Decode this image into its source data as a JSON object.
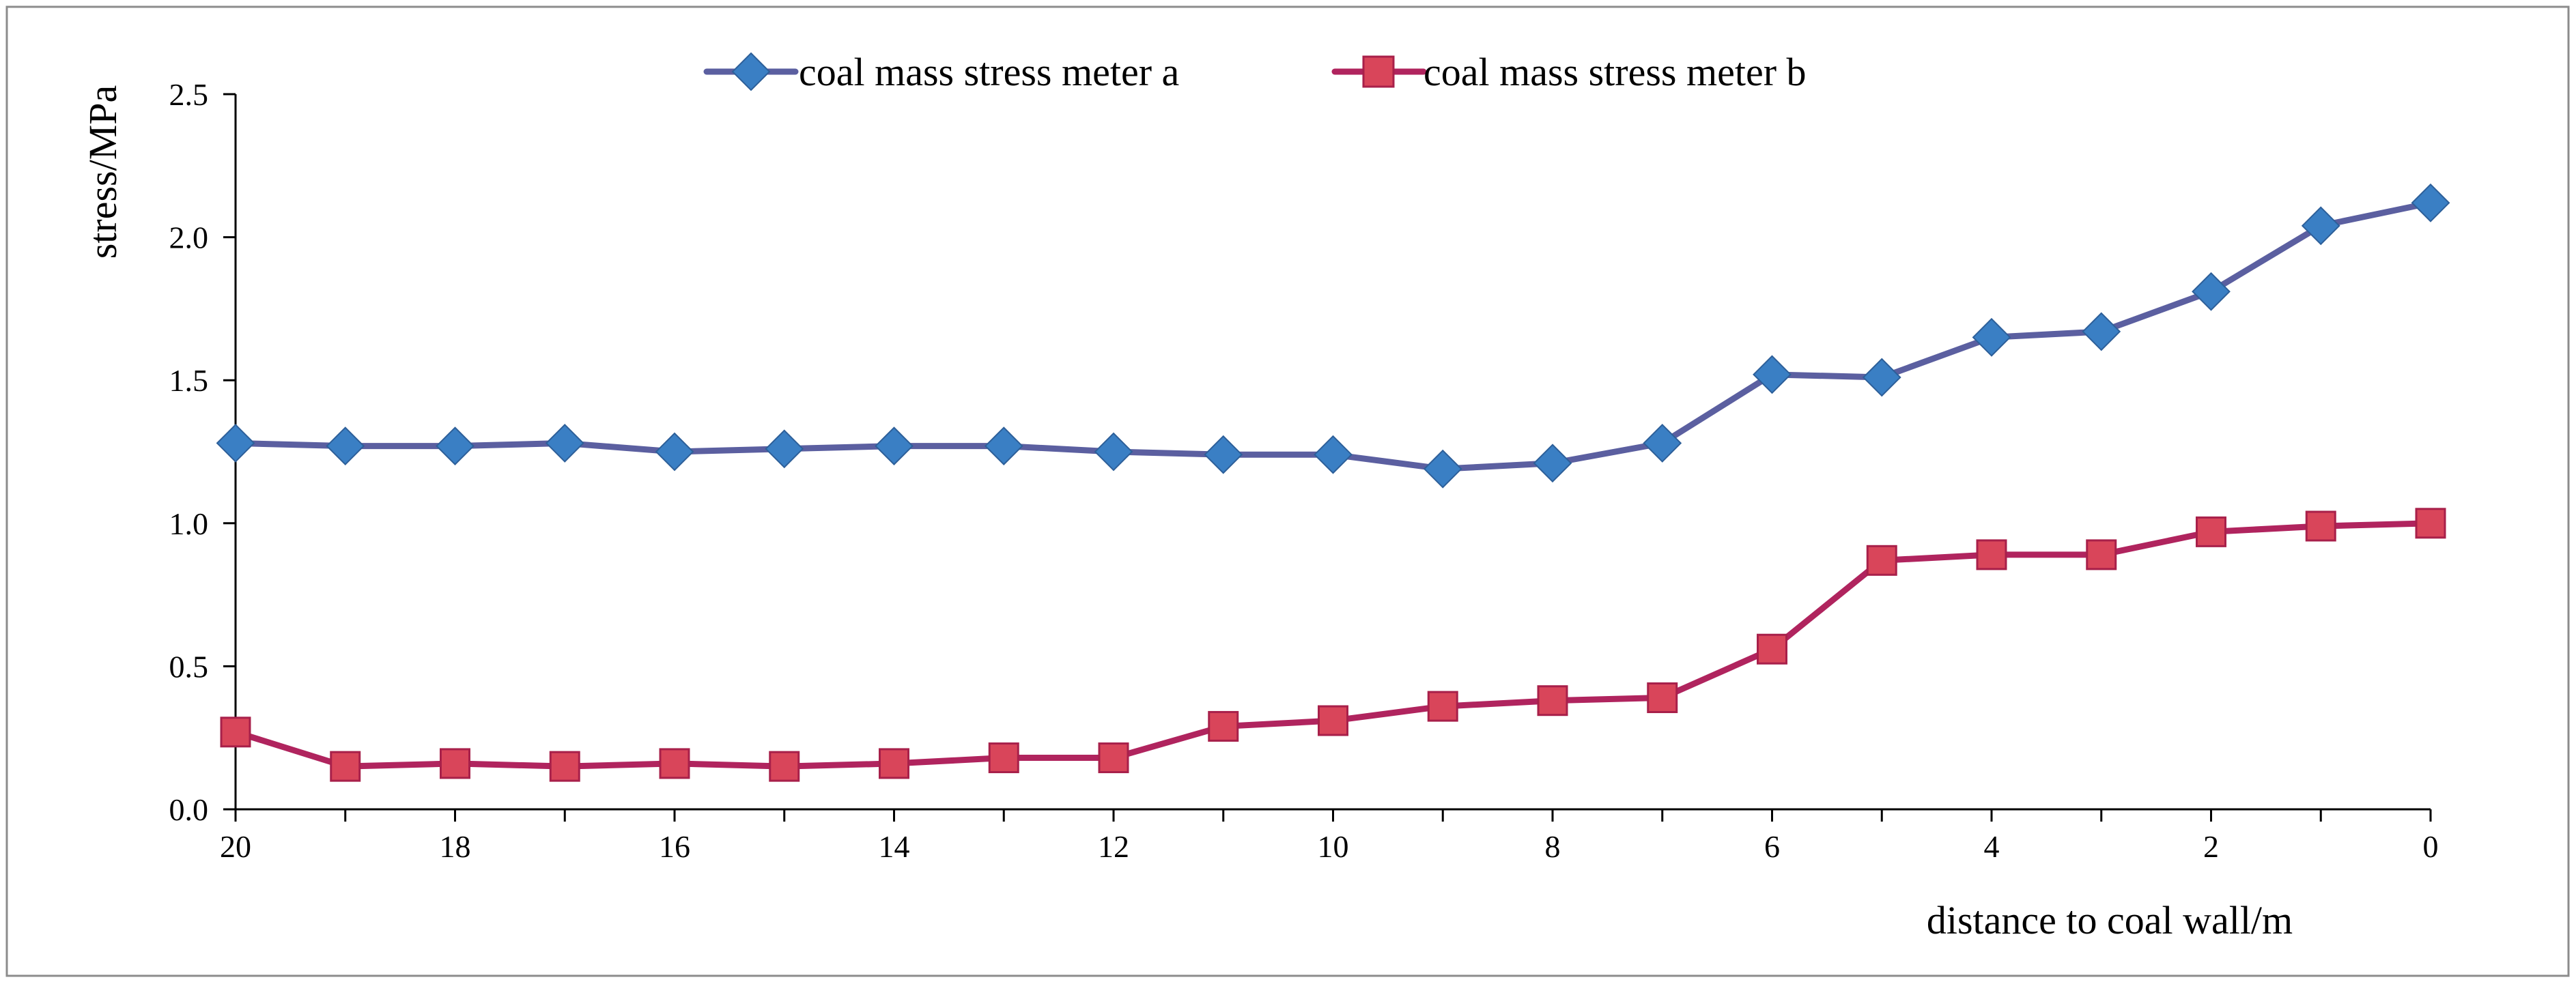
{
  "chart_data": {
    "type": "line",
    "title": "",
    "xlabel": "distance to coal wall/m",
    "ylabel": "stress/MPa",
    "x": [
      20,
      19,
      18,
      17,
      16,
      15,
      14,
      13,
      12,
      11,
      10,
      9,
      8,
      7,
      6,
      5,
      4,
      3,
      2,
      1,
      0
    ],
    "xlim": [
      20,
      0
    ],
    "x_ticks": [
      20,
      18,
      16,
      14,
      12,
      10,
      8,
      6,
      4,
      2,
      0
    ],
    "x_tick_labels": [
      "20",
      "18",
      "16",
      "14",
      "12",
      "10",
      "8",
      "6",
      "4",
      "2",
      "0"
    ],
    "ylim": [
      0,
      2.5
    ],
    "y_ticks": [
      0,
      0.5,
      1.0,
      1.5,
      2.0,
      2.5
    ],
    "y_tick_labels": [
      "0.0",
      "0.5",
      "1.0",
      "1.5",
      "2.0",
      "2.5"
    ],
    "grid": false,
    "legend_position": "top-center",
    "series": [
      {
        "name": "coal mass stress meter a",
        "marker": "diamond",
        "line_color": "#5b5fa0",
        "marker_color": "#3a7fc4",
        "values": [
          1.28,
          1.27,
          1.27,
          1.28,
          1.25,
          1.26,
          1.27,
          1.27,
          1.25,
          1.24,
          1.24,
          1.19,
          1.21,
          1.28,
          1.52,
          1.51,
          1.65,
          1.67,
          1.81,
          2.04,
          2.12
        ]
      },
      {
        "name": "coal mass stress meter b",
        "marker": "square",
        "line_color": "#b0245e",
        "marker_color": "#d9455a",
        "values": [
          0.27,
          0.15,
          0.16,
          0.15,
          0.16,
          0.15,
          0.16,
          0.18,
          0.18,
          0.29,
          0.31,
          0.36,
          0.38,
          0.39,
          0.56,
          0.87,
          0.89,
          0.89,
          0.97,
          0.99,
          1.0
        ]
      }
    ]
  }
}
